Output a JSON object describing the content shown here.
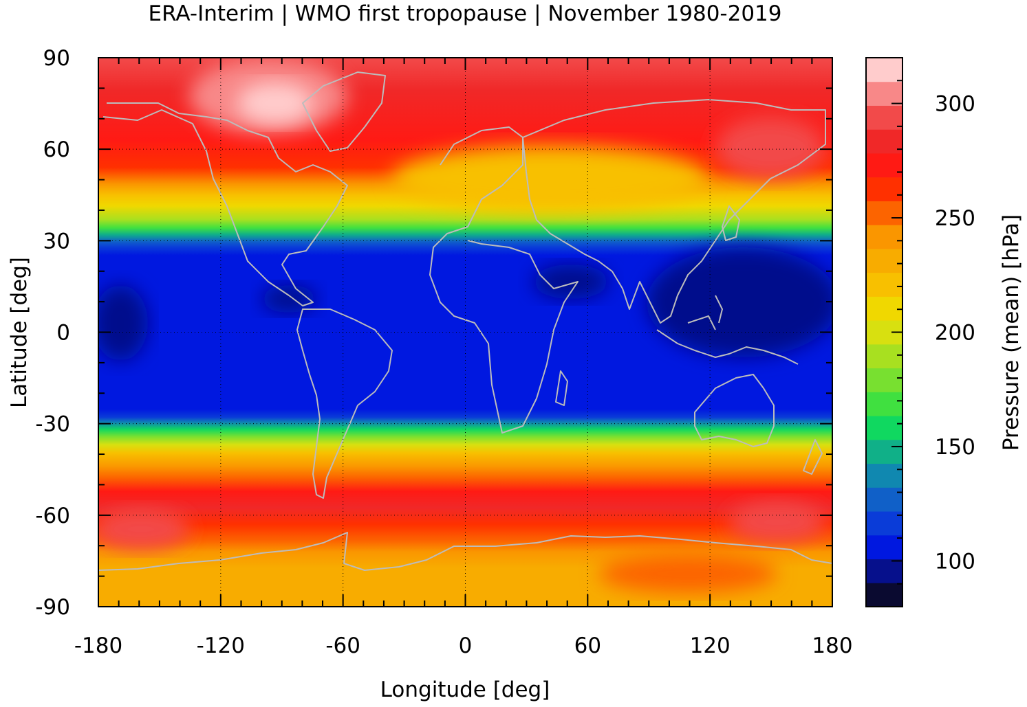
{
  "chart_data": {
    "type": "heatmap",
    "title": "ERA-Interim | WMO first tropopause | November 1980-2019",
    "xlabel": "Longitude [deg]",
    "ylabel": "Latitude [deg]",
    "xlim": [
      -180,
      180
    ],
    "ylim": [
      -90,
      90
    ],
    "x_ticks": [
      -180,
      -120,
      -60,
      0,
      60,
      120,
      180
    ],
    "y_ticks": [
      90,
      60,
      30,
      0,
      -30,
      -60,
      -90
    ],
    "x_tick_labels": [
      "-180",
      "-120",
      "-60",
      "0",
      "60",
      "120",
      "180"
    ],
    "y_tick_labels": [
      "90",
      "60",
      "30",
      "0",
      "-30",
      "-60",
      "-90"
    ],
    "grid": true,
    "colorbar": {
      "label": "Pressure (mean) [hPa]",
      "range": [
        80,
        320
      ],
      "ticks": [
        100,
        150,
        200,
        250,
        300
      ],
      "tick_labels": [
        "100",
        "150",
        "200",
        "250",
        "300"
      ],
      "colors": [
        "#0a0a30",
        "#06108c",
        "#0018e0",
        "#0a3cd8",
        "#1060c8",
        "#1088b0",
        "#10b088",
        "#10d860",
        "#40e040",
        "#78e030",
        "#a8e020",
        "#d8e010",
        "#f0d800",
        "#f8c000",
        "#f8ac00",
        "#fa9600",
        "#fc6400",
        "#ff3000",
        "#ff1a14",
        "#f02828",
        "#f24a4a",
        "#f88888",
        "#ffcccc"
      ]
    },
    "zonal_mean_profile": {
      "lat": [
        -90,
        -80,
        -70,
        -60,
        -50,
        -40,
        -30,
        -20,
        -10,
        0,
        10,
        20,
        30,
        40,
        50,
        60,
        70,
        80,
        90
      ],
      "pressure_hPa": [
        252,
        258,
        265,
        285,
        290,
        240,
        150,
        104,
        102,
        101,
        102,
        104,
        130,
        215,
        240,
        285,
        290,
        290,
        285
      ]
    },
    "annotations": [
      "coastlines"
    ]
  }
}
